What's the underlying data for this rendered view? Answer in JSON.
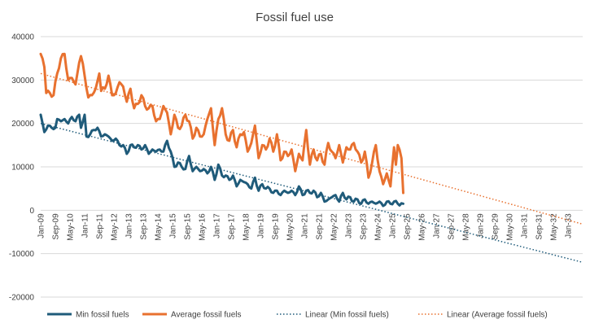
{
  "chart_data": {
    "type": "line",
    "title": "Fossil fuel use",
    "xlabel": "",
    "ylabel": "",
    "ylim": [
      -20000,
      40000
    ],
    "yticks": [
      -20000,
      -10000,
      0,
      10000,
      20000,
      30000,
      40000
    ],
    "grid": true,
    "legend_position": "bottom",
    "x_tick_labels": [
      "Jan-09",
      "Sep-09",
      "May-10",
      "Jan-11",
      "Sep-11",
      "May-12",
      "Jan-13",
      "Sep-13",
      "May-14",
      "Jan-15",
      "Sep-15",
      "May-16",
      "Jan-17",
      "Sep-17",
      "May-18",
      "Jan-19",
      "Sep-19",
      "May-20",
      "Jan-21",
      "Sep-21",
      "May-22",
      "Jan-23",
      "Sep-23",
      "May-24",
      "Jan-25",
      "Sep-25",
      "May-26",
      "Jan-27",
      "Sep-27",
      "May-28",
      "Jan-29",
      "Sep-29",
      "May-30",
      "Jan-31",
      "Sep-31",
      "May-32",
      "Jan-33"
    ],
    "x_range": [
      "Jan-09",
      "Sep-33"
    ],
    "series": [
      {
        "name": "Min fossil fuels",
        "color": "#1f5b7a",
        "style": "solid",
        "x_start": "Jan-09",
        "x_end": "Jul-25",
        "anchors": [
          [
            "Jan-09",
            22000
          ],
          [
            "Mar-09",
            18000
          ],
          [
            "May-09",
            19500
          ],
          [
            "Jul-09",
            19000
          ],
          [
            "Sep-09",
            19000
          ],
          [
            "Oct-09",
            21000
          ],
          [
            "Dec-09",
            20500
          ],
          [
            "Feb-10",
            21000
          ],
          [
            "Apr-10",
            20000
          ],
          [
            "Jun-10",
            21500
          ],
          [
            "Aug-10",
            20500
          ],
          [
            "Oct-10",
            22000
          ],
          [
            "Nov-10",
            19000
          ],
          [
            "Jan-11",
            22000
          ],
          [
            "Feb-11",
            17000
          ],
          [
            "Apr-11",
            17500
          ],
          [
            "Jun-11",
            18500
          ],
          [
            "Aug-11",
            19000
          ],
          [
            "Oct-11",
            17000
          ],
          [
            "Dec-11",
            17500
          ],
          [
            "Feb-12",
            17000
          ],
          [
            "Apr-12",
            16000
          ],
          [
            "Jun-12",
            16500
          ],
          [
            "Aug-12",
            15000
          ],
          [
            "Oct-12",
            15000
          ],
          [
            "Dec-12",
            13000
          ],
          [
            "Feb-13",
            15000
          ],
          [
            "Apr-13",
            14500
          ],
          [
            "Jun-13",
            15000
          ],
          [
            "Aug-13",
            14000
          ],
          [
            "Oct-13",
            15000
          ],
          [
            "Dec-13",
            13000
          ],
          [
            "Feb-14",
            14000
          ],
          [
            "Apr-14",
            13500
          ],
          [
            "Jun-14",
            14000
          ],
          [
            "Aug-14",
            13500
          ],
          [
            "Oct-14",
            16000
          ],
          [
            "Dec-14",
            13500
          ],
          [
            "Feb-15",
            10000
          ],
          [
            "Apr-15",
            11000
          ],
          [
            "Jun-15",
            10000
          ],
          [
            "Aug-15",
            9500
          ],
          [
            "Oct-15",
            12500
          ],
          [
            "Dec-15",
            9000
          ],
          [
            "Feb-16",
            10000
          ],
          [
            "Apr-16",
            9000
          ],
          [
            "Jun-16",
            9500
          ],
          [
            "Aug-16",
            8500
          ],
          [
            "Oct-16",
            10000
          ],
          [
            "Dec-16",
            7000
          ],
          [
            "Feb-17",
            10500
          ],
          [
            "Apr-17",
            8000
          ],
          [
            "Jun-17",
            8000
          ],
          [
            "Aug-17",
            7000
          ],
          [
            "Oct-17",
            8000
          ],
          [
            "Dec-17",
            5500
          ],
          [
            "Feb-18",
            7000
          ],
          [
            "Apr-18",
            6500
          ],
          [
            "Jun-18",
            6000
          ],
          [
            "Aug-18",
            5000
          ],
          [
            "Oct-18",
            7500
          ],
          [
            "Dec-18",
            4500
          ],
          [
            "Feb-19",
            6000
          ],
          [
            "Apr-19",
            5000
          ],
          [
            "Jun-19",
            5000
          ],
          [
            "Aug-19",
            4000
          ],
          [
            "Oct-19",
            4500
          ],
          [
            "Dec-19",
            3500
          ],
          [
            "Feb-20",
            4500
          ],
          [
            "Apr-20",
            4000
          ],
          [
            "Jun-20",
            4500
          ],
          [
            "Aug-20",
            3500
          ],
          [
            "Oct-20",
            5500
          ],
          [
            "Dec-20",
            3500
          ],
          [
            "Feb-21",
            4500
          ],
          [
            "Apr-21",
            4000
          ],
          [
            "Jun-21",
            4500
          ],
          [
            "Aug-21",
            3000
          ],
          [
            "Oct-21",
            4000
          ],
          [
            "Dec-21",
            2000
          ],
          [
            "Feb-22",
            2500
          ],
          [
            "Apr-22",
            3000
          ],
          [
            "Jun-22",
            3500
          ],
          [
            "Aug-22",
            2000
          ],
          [
            "Oct-22",
            4000
          ],
          [
            "Dec-22",
            2500
          ],
          [
            "Feb-23",
            3000
          ],
          [
            "Apr-23",
            2000
          ],
          [
            "Jun-23",
            2500
          ],
          [
            "Aug-23",
            1500
          ],
          [
            "Oct-23",
            2500
          ],
          [
            "Dec-23",
            1500
          ],
          [
            "Feb-24",
            2000
          ],
          [
            "Apr-24",
            1500
          ],
          [
            "Jun-24",
            2000
          ],
          [
            "Aug-24",
            1000
          ],
          [
            "Oct-24",
            2000
          ],
          [
            "Dec-24",
            1500
          ],
          [
            "Feb-25",
            2000
          ],
          [
            "Apr-25",
            1500
          ],
          [
            "Jul-25",
            1500
          ]
        ]
      },
      {
        "name": "Average fossil fuels",
        "color": "#e8712f",
        "style": "solid",
        "x_start": "Jan-09",
        "x_end": "Jul-25",
        "anchors": [
          [
            "Jan-09",
            36000
          ],
          [
            "Mar-09",
            33000
          ],
          [
            "Apr-09",
            27000
          ],
          [
            "Jun-09",
            27000
          ],
          [
            "Aug-09",
            26500
          ],
          [
            "Oct-09",
            31500
          ],
          [
            "Dec-09",
            35000
          ],
          [
            "Feb-10",
            36000
          ],
          [
            "Apr-10",
            30000
          ],
          [
            "Jun-10",
            30500
          ],
          [
            "Aug-10",
            29000
          ],
          [
            "Oct-10",
            34000
          ],
          [
            "Nov-10",
            35500
          ],
          [
            "Jan-11",
            31000
          ],
          [
            "Mar-11",
            26000
          ],
          [
            "May-11",
            26500
          ],
          [
            "Jul-11",
            28000
          ],
          [
            "Sep-11",
            31500
          ],
          [
            "Oct-11",
            27500
          ],
          [
            "Dec-11",
            28000
          ],
          [
            "Feb-12",
            31000
          ],
          [
            "Apr-12",
            26500
          ],
          [
            "Jun-12",
            27000
          ],
          [
            "Aug-12",
            29500
          ],
          [
            "Oct-12",
            28500
          ],
          [
            "Dec-12",
            25000
          ],
          [
            "Feb-13",
            28000
          ],
          [
            "Apr-13",
            23500
          ],
          [
            "Jun-13",
            24500
          ],
          [
            "Aug-13",
            26500
          ],
          [
            "Oct-13",
            24000
          ],
          [
            "Dec-13",
            23500
          ],
          [
            "Feb-14",
            24000
          ],
          [
            "Apr-14",
            20500
          ],
          [
            "Jun-14",
            21000
          ],
          [
            "Aug-14",
            24000
          ],
          [
            "Oct-14",
            22500
          ],
          [
            "Dec-14",
            17500
          ],
          [
            "Feb-15",
            22000
          ],
          [
            "Apr-15",
            19000
          ],
          [
            "Jun-15",
            19500
          ],
          [
            "Aug-15",
            22000
          ],
          [
            "Oct-15",
            20500
          ],
          [
            "Dec-15",
            16500
          ],
          [
            "Feb-16",
            19000
          ],
          [
            "Apr-16",
            17000
          ],
          [
            "Jun-16",
            17500
          ],
          [
            "Aug-16",
            21000
          ],
          [
            "Oct-16",
            23500
          ],
          [
            "Dec-16",
            15000
          ],
          [
            "Feb-17",
            21000
          ],
          [
            "Apr-17",
            23500
          ],
          [
            "Jun-17",
            17500
          ],
          [
            "Aug-17",
            16000
          ],
          [
            "Oct-17",
            18500
          ],
          [
            "Dec-17",
            14500
          ],
          [
            "Feb-18",
            17500
          ],
          [
            "Apr-18",
            18000
          ],
          [
            "Jun-18",
            13500
          ],
          [
            "Aug-18",
            15500
          ],
          [
            "Oct-18",
            19500
          ],
          [
            "Dec-18",
            12000
          ],
          [
            "Feb-19",
            15000
          ],
          [
            "Apr-19",
            14000
          ],
          [
            "Jun-19",
            16500
          ],
          [
            "Aug-19",
            13500
          ],
          [
            "Oct-19",
            17500
          ],
          [
            "Dec-19",
            11500
          ],
          [
            "Feb-20",
            13500
          ],
          [
            "Apr-20",
            12500
          ],
          [
            "Jun-20",
            14000
          ],
          [
            "Aug-20",
            9000
          ],
          [
            "Oct-20",
            13000
          ],
          [
            "Dec-20",
            11500
          ],
          [
            "Feb-21",
            18500
          ],
          [
            "Apr-21",
            10500
          ],
          [
            "Jun-21",
            14000
          ],
          [
            "Aug-21",
            11500
          ],
          [
            "Oct-21",
            13000
          ],
          [
            "Dec-21",
            10500
          ],
          [
            "Feb-22",
            15500
          ],
          [
            "Apr-22",
            13500
          ],
          [
            "Jun-22",
            12000
          ],
          [
            "Aug-22",
            15000
          ],
          [
            "Oct-22",
            11000
          ],
          [
            "Dec-22",
            14500
          ],
          [
            "Feb-23",
            14000
          ],
          [
            "Apr-23",
            15500
          ],
          [
            "Jun-23",
            13500
          ],
          [
            "Aug-23",
            11000
          ],
          [
            "Oct-23",
            13500
          ],
          [
            "Dec-23",
            7500
          ],
          [
            "Feb-24",
            11000
          ],
          [
            "Apr-24",
            15000
          ],
          [
            "Jun-24",
            9000
          ],
          [
            "Aug-24",
            6000
          ],
          [
            "Oct-24",
            8500
          ],
          [
            "Dec-24",
            5500
          ],
          [
            "Feb-25",
            14500
          ],
          [
            "Mar-25",
            10500
          ],
          [
            "Apr-25",
            15000
          ],
          [
            "Jun-25",
            12000
          ],
          [
            "Jul-25",
            4000
          ]
        ]
      },
      {
        "name": "Linear (Min fossil fuels)",
        "color": "#1f5b7a",
        "style": "dotted",
        "points": [
          [
            "Jan-09",
            20000
          ],
          [
            "Sep-33",
            -12000
          ]
        ]
      },
      {
        "name": "Linear (Average fossil fuels)",
        "color": "#e8712f",
        "style": "dotted",
        "points": [
          [
            "Jan-09",
            31500
          ],
          [
            "Sep-33",
            -3200
          ]
        ]
      }
    ]
  }
}
